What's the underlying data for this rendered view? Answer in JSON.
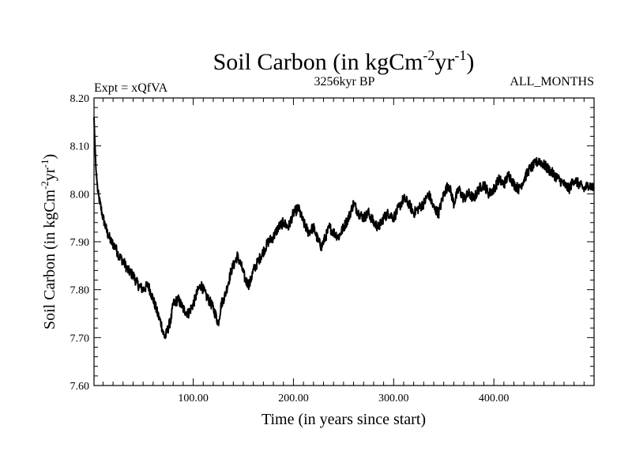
{
  "chart_data": {
    "type": "line",
    "title": "Soil Carbon (in kgCm",
    "title_sup1": "-2",
    "title_mid": "yr",
    "title_sup2": "-1",
    "title_end": ")",
    "subtitle_left": "Expt = xQfVA",
    "subtitle_center": "3256kyr BP",
    "subtitle_right": "ALL_MONTHS",
    "xlabel": "Time (in years since start)",
    "ylabel": "Soil Carbon (in kgCm",
    "ylabel_sup1": "-2",
    "ylabel_mid": "yr",
    "ylabel_sup2": "-1",
    "ylabel_end": ")",
    "xlim": [
      1,
      500
    ],
    "ylim": [
      7.6,
      8.2
    ],
    "xticks": [
      {
        "value": 100,
        "label": "100.00"
      },
      {
        "value": 200,
        "label": "200.00"
      },
      {
        "value": 300,
        "label": "300.00"
      },
      {
        "value": 400,
        "label": "400.00"
      }
    ],
    "yticks": [
      {
        "value": 7.6,
        "label": "7.60"
      },
      {
        "value": 7.7,
        "label": "7.70"
      },
      {
        "value": 7.8,
        "label": "7.80"
      },
      {
        "value": 7.9,
        "label": "7.90"
      },
      {
        "value": 8.0,
        "label": "8.00"
      },
      {
        "value": 8.1,
        "label": "8.10"
      },
      {
        "value": 8.2,
        "label": "8.20"
      }
    ],
    "line_color": "#000000",
    "series": [
      {
        "name": "Soil Carbon",
        "x": [
          1,
          2,
          3,
          5,
          8,
          10,
          14,
          18,
          22,
          26,
          30,
          35,
          40,
          45,
          50,
          55,
          60,
          63,
          66,
          68,
          70,
          72,
          75,
          78,
          80,
          85,
          90,
          95,
          100,
          105,
          108,
          112,
          115,
          118,
          122,
          125,
          128,
          132,
          138,
          144,
          148,
          152,
          156,
          160,
          165,
          170,
          175,
          180,
          185,
          190,
          195,
          200,
          205,
          210,
          215,
          220,
          225,
          228,
          232,
          236,
          240,
          245,
          250,
          255,
          260,
          265,
          270,
          275,
          280,
          285,
          290,
          295,
          300,
          305,
          310,
          315,
          320,
          325,
          330,
          335,
          340,
          345,
          350,
          355,
          360,
          365,
          370,
          375,
          380,
          385,
          390,
          395,
          400,
          405,
          410,
          415,
          420,
          425,
          430,
          435,
          440,
          445,
          450,
          455,
          460,
          465,
          470,
          475,
          480,
          485,
          490,
          495,
          500
        ],
        "values": [
          8.16,
          8.1,
          8.05,
          8.0,
          7.97,
          7.95,
          7.92,
          7.9,
          7.89,
          7.87,
          7.86,
          7.84,
          7.83,
          7.81,
          7.8,
          7.81,
          7.78,
          7.76,
          7.74,
          7.73,
          7.71,
          7.7,
          7.72,
          7.74,
          7.77,
          7.78,
          7.76,
          7.75,
          7.77,
          7.8,
          7.81,
          7.79,
          7.78,
          7.77,
          7.75,
          7.73,
          7.77,
          7.79,
          7.84,
          7.87,
          7.85,
          7.82,
          7.81,
          7.84,
          7.86,
          7.88,
          7.9,
          7.91,
          7.93,
          7.94,
          7.93,
          7.96,
          7.97,
          7.94,
          7.92,
          7.93,
          7.9,
          7.89,
          7.91,
          7.93,
          7.92,
          7.91,
          7.93,
          7.95,
          7.98,
          7.96,
          7.95,
          7.96,
          7.94,
          7.93,
          7.95,
          7.96,
          7.95,
          7.97,
          7.99,
          7.98,
          7.96,
          7.97,
          7.98,
          8.0,
          7.97,
          7.96,
          8.0,
          8.02,
          7.98,
          8.01,
          7.99,
          8.0,
          7.99,
          8.01,
          8.02,
          8.0,
          8.01,
          8.03,
          8.02,
          8.04,
          8.02,
          8.01,
          8.03,
          8.05,
          8.06,
          8.07,
          8.06,
          8.05,
          8.04,
          8.03,
          8.02,
          8.01,
          8.03,
          8.02,
          8.01,
          8.02,
          8.01
        ]
      }
    ]
  }
}
